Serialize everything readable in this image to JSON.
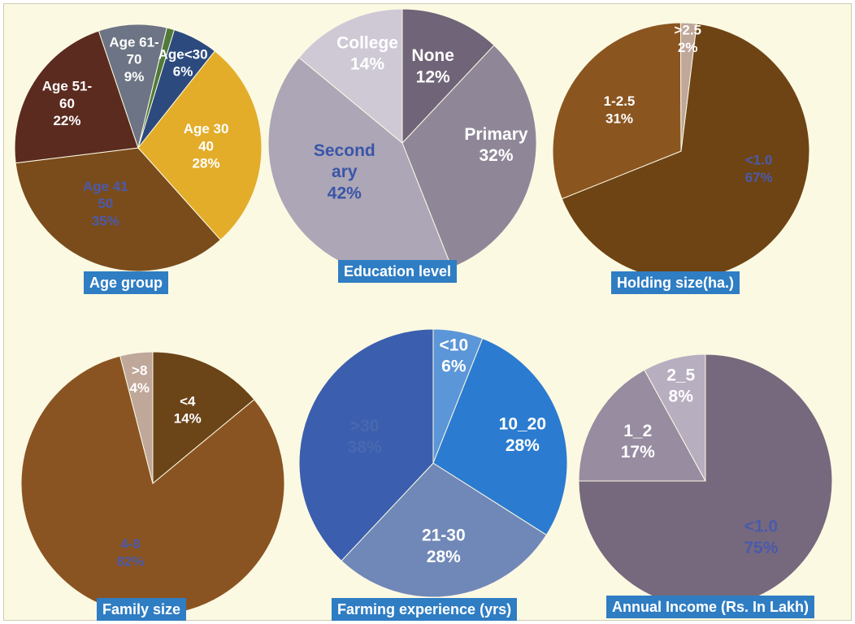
{
  "chart_data": [
    {
      "type": "pie",
      "title": "Age group",
      "series": [
        {
          "values": [
            6,
            28,
            35,
            22,
            9,
            1
          ]
        }
      ],
      "categories": [
        "Age<30",
        "Age 30-40",
        "Age 41-50",
        "Age 51-60",
        "Age 61-70",
        ""
      ],
      "slices": [
        {
          "lines": [
            "Age<30",
            "6%"
          ],
          "value": 6,
          "color": "#2c4a7e",
          "label_color": "#ffffff"
        },
        {
          "lines": [
            "Age 30",
            "40",
            "28%"
          ],
          "value": 28,
          "color": "#e3ad2a",
          "label_color": "#ffffff"
        },
        {
          "lines": [
            "Age 41",
            "50",
            "35%"
          ],
          "value": 35,
          "color": "#7a4c1c",
          "label_color": "#4a5aaa"
        },
        {
          "lines": [
            "Age 51-",
            "60",
            "22%"
          ],
          "value": 22,
          "color": "#5c2b1f",
          "label_color": "#ffffff"
        },
        {
          "lines": [
            "Age 61-",
            "70",
            "9%"
          ],
          "value": 9,
          "color": "#6c7485",
          "label_color": "#ffffff"
        },
        {
          "lines": [],
          "value": 1,
          "color": "#4f7a3a",
          "label_color": "#ffffff"
        }
      ]
    },
    {
      "type": "pie",
      "title": "Education level",
      "series": [
        {
          "values": [
            12,
            32,
            42,
            14
          ]
        }
      ],
      "categories": [
        "None",
        "Primary",
        "Secondary",
        "College"
      ],
      "slices": [
        {
          "lines": [
            "None",
            "12%"
          ],
          "value": 12,
          "color": "#6f6478",
          "label_color": "#ffffff"
        },
        {
          "lines": [
            "Primary",
            "32%"
          ],
          "value": 32,
          "color": "#8f8798",
          "label_color": "#ffffff"
        },
        {
          "lines": [
            "Second",
            "ary",
            "42%"
          ],
          "value": 42,
          "color": "#aca6b6",
          "label_color": "#3a55a8"
        },
        {
          "lines": [
            "College",
            "14%"
          ],
          "value": 14,
          "color": "#cfc9d6",
          "label_color": "#ffffff"
        }
      ]
    },
    {
      "type": "pie",
      "title": "Holding size(ha.)",
      "series": [
        {
          "values": [
            67,
            31,
            2
          ]
        }
      ],
      "categories": [
        "<1.0",
        "1-2.5",
        ">2.5"
      ],
      "slices": [
        {
          "lines": [
            "<1.0",
            "67%"
          ],
          "value": 67,
          "color": "#6e4414",
          "label_color": "#4a5aaa"
        },
        {
          "lines": [
            "1-2.5",
            "31%"
          ],
          "value": 31,
          "color": "#8b5520",
          "label_color": "#ffffff"
        },
        {
          "lines": [
            ">2.5",
            "2%"
          ],
          "value": 2,
          "color": "#bfa79a",
          "label_color": "#ffffff"
        }
      ]
    },
    {
      "type": "pie",
      "title": "Family size",
      "series": [
        {
          "values": [
            14,
            82,
            4
          ]
        }
      ],
      "categories": [
        "<4",
        "4-8",
        ">8"
      ],
      "slices": [
        {
          "lines": [
            "<4",
            "14%"
          ],
          "value": 14,
          "color": "#6b4418",
          "label_color": "#ffffff"
        },
        {
          "lines": [
            "4-8",
            "82%"
          ],
          "value": 82,
          "color": "#8a5422",
          "label_color": "#4a5aaa"
        },
        {
          "lines": [
            ">8",
            "4%"
          ],
          "value": 4,
          "color": "#bfa79a",
          "label_color": "#ffffff"
        }
      ]
    },
    {
      "type": "pie",
      "title": "Farming experience (yrs)",
      "series": [
        {
          "values": [
            6,
            28,
            28,
            38
          ]
        }
      ],
      "categories": [
        "<10",
        "10_20",
        "21-30",
        ">30"
      ],
      "slices": [
        {
          "lines": [
            "<10",
            "6%"
          ],
          "value": 6,
          "color": "#5b96d8",
          "label_color": "#ffffff"
        },
        {
          "lines": [
            "10_20",
            "28%"
          ],
          "value": 28,
          "color": "#2b7bd0",
          "label_color": "#ffffff"
        },
        {
          "lines": [
            "21-30",
            "28%"
          ],
          "value": 28,
          "color": "#7088b8",
          "label_color": "#ffffff"
        },
        {
          "lines": [
            ">30",
            "38%"
          ],
          "value": 38,
          "color": "#3b5fae",
          "label_color": "#4a68b0"
        }
      ]
    },
    {
      "type": "pie",
      "title": "Annual Income (Rs. In Lakh)",
      "series": [
        {
          "values": [
            75,
            17,
            8
          ]
        }
      ],
      "categories": [
        "<1.0",
        "1_2",
        "2_5"
      ],
      "slices": [
        {
          "lines": [
            "<1.0",
            "75%"
          ],
          "value": 75,
          "color": "#76697d",
          "label_color": "#4a5aaa"
        },
        {
          "lines": [
            "1_2",
            "17%"
          ],
          "value": 17,
          "color": "#978ca0",
          "label_color": "#ffffff"
        },
        {
          "lines": [
            "2_5",
            "8%"
          ],
          "value": 8,
          "color": "#b7aec0",
          "label_color": "#ffffff"
        }
      ]
    }
  ],
  "captions": {
    "age": "Age group",
    "education": "Education level",
    "holding": "Holding size(ha.)",
    "family": "Family size",
    "experience": "Farming experience (yrs)",
    "income": "Annual Income (Rs. In Lakh)"
  }
}
